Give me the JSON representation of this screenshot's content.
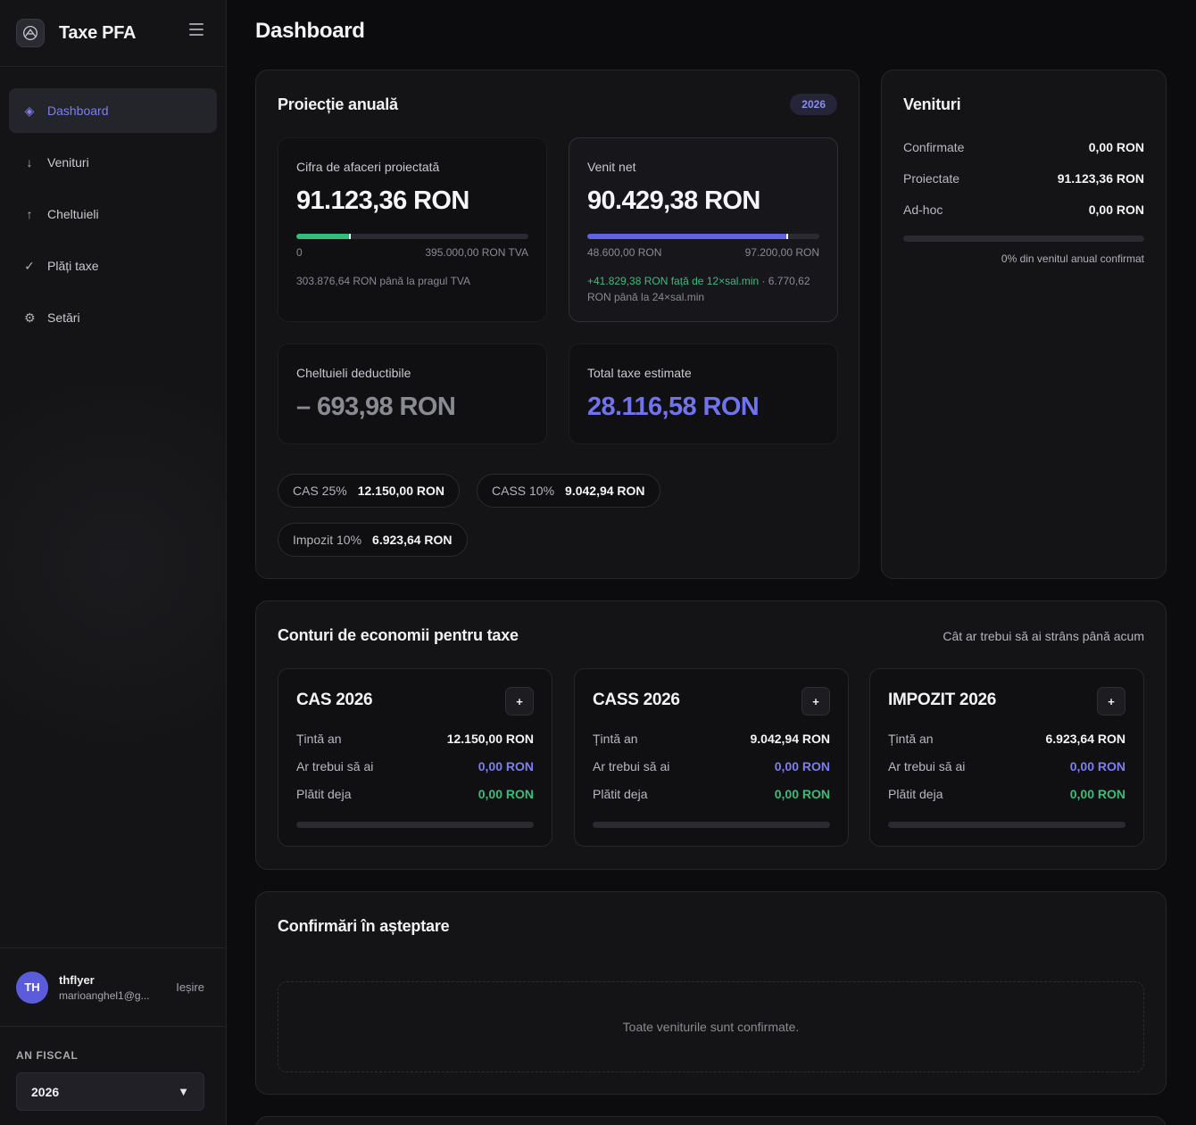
{
  "app": {
    "title": "Taxe PFA"
  },
  "sidebar": {
    "items": [
      {
        "label": "Dashboard",
        "icon": "diamond-icon",
        "glyph": "◈",
        "active": true
      },
      {
        "label": "Venituri",
        "icon": "arrow-down-icon",
        "glyph": "↓"
      },
      {
        "label": "Cheltuieli",
        "icon": "arrow-up-icon",
        "glyph": "↑"
      },
      {
        "label": "Plăți taxe",
        "icon": "check-icon",
        "glyph": "✓"
      },
      {
        "label": "Setări",
        "icon": "gear-icon",
        "glyph": "⚙"
      }
    ]
  },
  "user": {
    "initials": "TH",
    "name": "thflyer",
    "email": "marioanghel1@g...",
    "logout_label": "Ieșire"
  },
  "fiscal": {
    "label": "AN FISCAL",
    "selected": "2026"
  },
  "header": {
    "title": "Dashboard"
  },
  "projection": {
    "title": "Proiecție anuală",
    "badge": "2026",
    "turnover": {
      "label": "Cifra de afaceri proiectată",
      "value": "91.123,36 RON",
      "bar_fill": 0.23,
      "bar_color": "#2fbf7a",
      "min_label": "0",
      "max_label": "395.000,00 RON TVA",
      "note": "303.876,64 RON până la pragul TVA"
    },
    "net": {
      "label": "Venit net",
      "value": "90.429,38 RON",
      "bar_fill": 0.86,
      "bar_color": "#6062e6",
      "min_label": "48.600,00 RON",
      "max_label": "97.200,00 RON",
      "note_green": "+41.829,38 RON față de 12×sal.min",
      "note_rest": " · 6.770,62 RON până la 24×sal.min"
    },
    "expenses": {
      "label": "Cheltuieli deductibile",
      "value": "– 693,98 RON",
      "value_color": "#8a8a92"
    },
    "taxes": {
      "label": "Total taxe estimate",
      "value": "28.116,58 RON",
      "value_color": "#7173ee"
    },
    "pills": [
      {
        "label": "CAS 25%",
        "value": "12.150,00 RON"
      },
      {
        "label": "CASS 10%",
        "value": "9.042,94 RON"
      },
      {
        "label": "Impozit 10%",
        "value": "6.923,64 RON"
      }
    ]
  },
  "income": {
    "title": "Venituri",
    "rows": [
      {
        "label": "Confirmate",
        "value": "0,00 RON"
      },
      {
        "label": "Proiectate",
        "value": "91.123,36 RON"
      },
      {
        "label": "Ad-hoc",
        "value": "0,00 RON"
      }
    ],
    "progress": 0,
    "caption": "0% din venitul anual confirmat"
  },
  "savings": {
    "title": "Conturi de economii pentru taxe",
    "subtitle": "Cât ar trebui să ai strâns până acum",
    "cards": [
      {
        "title": "CAS 2026",
        "target_label": "Țintă an",
        "target": "12.150,00 RON",
        "should_label": "Ar trebui să ai",
        "should": "0,00 RON",
        "paid_label": "Plătit deja",
        "paid": "0,00 RON",
        "progress": 0
      },
      {
        "title": "CASS 2026",
        "target_label": "Țintă an",
        "target": "9.042,94 RON",
        "should_label": "Ar trebui să ai",
        "should": "0,00 RON",
        "paid_label": "Plătit deja",
        "paid": "0,00 RON",
        "progress": 0
      },
      {
        "title": "IMPOZIT 2026",
        "target_label": "Țintă an",
        "target": "6.923,64 RON",
        "should_label": "Ar trebui să ai",
        "should": "0,00 RON",
        "paid_label": "Plătit deja",
        "paid": "0,00 RON",
        "progress": 0
      }
    ],
    "plus_label": "+"
  },
  "pending": {
    "title": "Confirmări în așteptare",
    "empty": "Toate veniturile sunt confirmate."
  }
}
